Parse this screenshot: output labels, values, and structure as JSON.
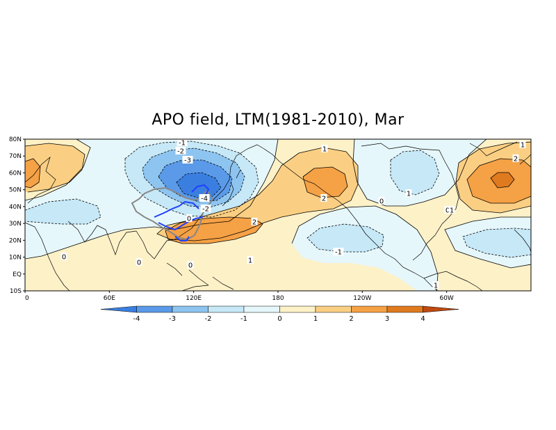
{
  "title": "APO field, LTM(1981-2010), Mar",
  "map": {
    "lat_ticks": [
      "80N",
      "70N",
      "60N",
      "50N",
      "40N",
      "30N",
      "20N",
      "10N",
      "EQ",
      "10S"
    ],
    "lon_ticks": [
      "0",
      "60E",
      "120E",
      "180",
      "120W",
      "60W"
    ],
    "contour_labels": [
      {
        "text": "-1",
        "kind": "neg"
      },
      {
        "text": "-2",
        "kind": "neg"
      },
      {
        "text": "-3",
        "kind": "neg"
      },
      {
        "text": "-4",
        "kind": "neg"
      },
      {
        "text": "-2",
        "kind": "neg"
      },
      {
        "text": "0",
        "kind": "zero"
      },
      {
        "text": "1",
        "kind": "pos"
      },
      {
        "text": "2",
        "kind": "pos"
      },
      {
        "text": "0",
        "kind": "zero"
      },
      {
        "text": "-1",
        "kind": "neg"
      },
      {
        "text": "2",
        "kind": "pos"
      },
      {
        "text": "1",
        "kind": "pos"
      },
      {
        "text": "1",
        "kind": "pos"
      },
      {
        "text": "0",
        "kind": "zero"
      },
      {
        "text": "1",
        "kind": "pos"
      },
      {
        "text": "0",
        "kind": "zero"
      },
      {
        "text": "0",
        "kind": "zero"
      },
      {
        "text": "0",
        "kind": "zero"
      },
      {
        "text": "1",
        "kind": "pos"
      },
      {
        "text": "2",
        "kind": "pos"
      },
      {
        "text": "1",
        "kind": "pos"
      }
    ]
  },
  "colorbar": {
    "labels": [
      "-4",
      "-3",
      "-2",
      "-1",
      "0",
      "1",
      "2",
      "3",
      "4"
    ],
    "colors": [
      "#3a7fe0",
      "#5a9ae8",
      "#8ec4f0",
      "#c6e8f7",
      "#e6f7fb",
      "#fdf1c8",
      "#fbcf83",
      "#f5a145",
      "#e07a1f",
      "#c04a10"
    ]
  },
  "colors": {
    "neg1": "#c6e8f7",
    "neg2": "#8ec4f0",
    "neg3": "#5a9ae8",
    "neg4": "#3a7fe0",
    "zero_neg": "#e6f7fb",
    "zero_pos": "#fdf1c8",
    "pos1": "#fbcf83",
    "pos2": "#f5a145",
    "pos3": "#e07a1f",
    "outline_china": "#888888",
    "rivers": "#1f3fff"
  }
}
